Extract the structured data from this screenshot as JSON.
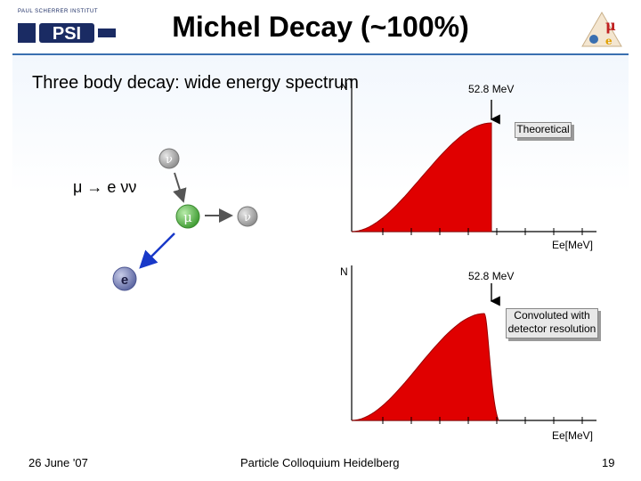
{
  "header": {
    "title": "Michel Decay (~100%)",
    "logo_text": "PSI",
    "logo_caption": "PAUL SCHERRER INSTITUT"
  },
  "intro": "Three body decay: wide energy spectrum",
  "decay": {
    "equation": "μ → e νν",
    "particles": {
      "neutrino_top": "ν",
      "muon": "μ",
      "neutrino_right": "ν",
      "electron": "e"
    },
    "colors": {
      "neutrino": "#b0b0b0",
      "muon": "#58b848",
      "electron": "#7a84b8",
      "electron_arrow": "#1838c8"
    }
  },
  "plots": {
    "top": {
      "ylabel": "N",
      "endpoint_label": "52.8 MeV",
      "callout": "Theoretical",
      "xlabel": "Ee[MeV]"
    },
    "bottom": {
      "ylabel": "N",
      "endpoint_label": "52.8 MeV",
      "callout_line1": "Convoluted with",
      "callout_line2": "detector resolution",
      "xlabel": "Ee[MeV]"
    },
    "fill_color": "#e00000"
  },
  "footer": {
    "date": "26 June '07",
    "event": "Particle Colloquium Heidelberg",
    "page": "19"
  }
}
